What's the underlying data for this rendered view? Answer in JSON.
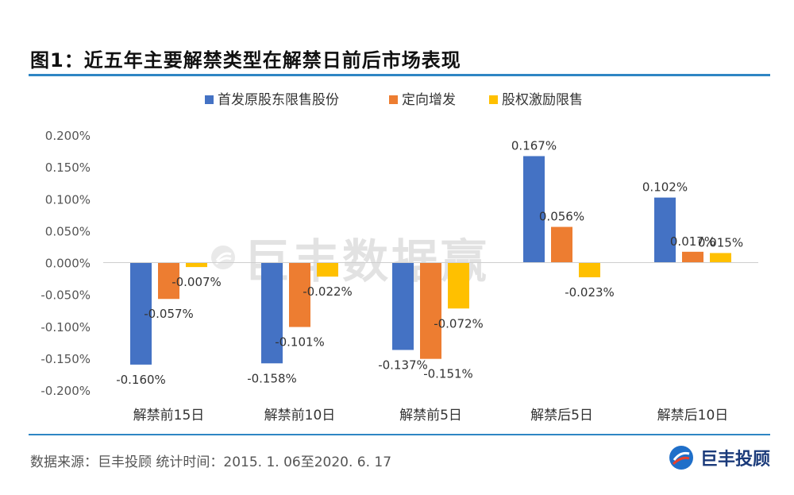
{
  "title": "图1：近五年主要解禁类型在解禁日前后市场表现",
  "source": "数据来源：巨丰投顾 统计时间：2015. 1. 06至2020. 6. 17",
  "logo_text": "巨丰投顾",
  "watermark_text": "巨丰数据赢",
  "chart_data": {
    "type": "bar",
    "categories": [
      "解禁前15日",
      "解禁前10日",
      "解禁前5日",
      "解禁后5日",
      "解禁后10日"
    ],
    "series": [
      {
        "name": "首发原股东限售股份",
        "color": "#4472c4",
        "values": [
          -0.16,
          -0.158,
          -0.137,
          0.167,
          0.102
        ],
        "labels": [
          "-0.160%",
          "-0.158%",
          "-0.137%",
          "0.167%",
          "0.102%"
        ]
      },
      {
        "name": "定向增发",
        "color": "#ed7d31",
        "values": [
          -0.057,
          -0.101,
          -0.151,
          0.056,
          0.017
        ],
        "labels": [
          "-0.057%",
          "-0.101%",
          "-0.151%",
          "0.056%",
          "0.017%"
        ]
      },
      {
        "name": "股权激励限售",
        "color": "#ffc000",
        "values": [
          -0.007,
          -0.022,
          -0.072,
          -0.023,
          0.015
        ],
        "labels": [
          "-0.007%",
          "-0.022%",
          "-0.072%",
          "-0.023%",
          "0.015%"
        ]
      }
    ],
    "ylim": [
      -0.2,
      0.2
    ],
    "yticks": [
      "0.200%",
      "0.150%",
      "0.100%",
      "0.050%",
      "0.000%",
      "-0.050%",
      "-0.100%",
      "-0.150%",
      "-0.200%"
    ],
    "ytick_values": [
      0.2,
      0.15,
      0.1,
      0.05,
      0.0,
      -0.05,
      -0.1,
      -0.15,
      -0.2
    ],
    "legend_position": "top",
    "grid": false
  }
}
